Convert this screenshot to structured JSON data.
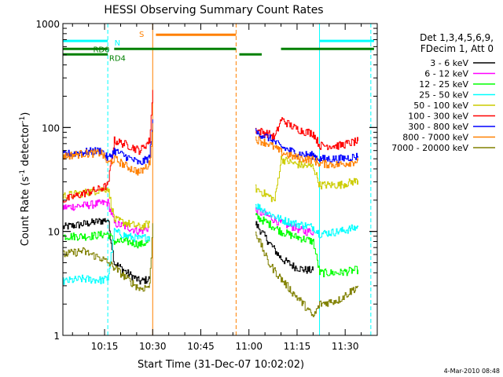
{
  "chart_data": {
    "type": "line",
    "title": "HESSI Observing Summary Count Rates",
    "xlabel": "Start Time (31-Dec-07 10:02:02)",
    "ylabel_main": "Count Rate (s",
    "ylabel_sup1": "-1",
    "ylabel_mid": " detector",
    "ylabel_sup2": "-1",
    "ylabel_end": ")",
    "y_scale": "log",
    "xlim": [
      "10:02",
      "11:40"
    ],
    "ylim": [
      1,
      1000
    ],
    "x_ticks": [
      "10:15",
      "10:30",
      "10:45",
      "11:00",
      "11:15",
      "11:30"
    ],
    "y_ticks": [
      {
        "value": 1,
        "label": "1"
      },
      {
        "value": 10,
        "label": "10"
      },
      {
        "value": 100,
        "label": "100"
      },
      {
        "value": 1000,
        "label": "1000"
      }
    ],
    "legend_title": "Det 1,3,4,5,6,9,",
    "legend_subtitle": "FDecim 1, Att 0",
    "legend_position": "right",
    "footer": "4-Mar-2010 08:48",
    "series": [
      {
        "name": "3 - 6 keV",
        "color": "#000000",
        "points": [
          [
            "10:02",
            11
          ],
          [
            "10:10",
            12
          ],
          [
            "10:16",
            13
          ],
          [
            "10:18",
            5
          ],
          [
            "10:22",
            4
          ],
          [
            "10:26",
            3.3
          ],
          [
            "10:29",
            3.5
          ],
          [
            "11:02",
            12
          ],
          [
            "11:06",
            8
          ],
          [
            "11:10",
            5.5
          ],
          [
            "11:14",
            4.6
          ],
          [
            "11:17",
            4.3
          ],
          [
            "11:20",
            4.2
          ]
        ]
      },
      {
        "name": "6 - 12 keV",
        "color": "#ff00ff",
        "points": [
          [
            "10:02",
            17
          ],
          [
            "10:10",
            18
          ],
          [
            "10:16",
            19
          ],
          [
            "10:18",
            12
          ],
          [
            "10:22",
            11
          ],
          [
            "10:26",
            10
          ],
          [
            "10:29",
            11
          ],
          [
            "11:02",
            16
          ],
          [
            "11:06",
            14
          ],
          [
            "11:10",
            12
          ],
          [
            "11:14",
            11
          ],
          [
            "11:17",
            10
          ],
          [
            "11:20",
            10
          ]
        ]
      },
      {
        "name": "12 - 25 keV",
        "color": "#00ff00",
        "points": [
          [
            "10:02",
            9
          ],
          [
            "10:10",
            9
          ],
          [
            "10:16",
            9.5
          ],
          [
            "10:18",
            8
          ],
          [
            "10:22",
            8
          ],
          [
            "10:26",
            7.5
          ],
          [
            "10:29",
            8
          ],
          [
            "11:02",
            14
          ],
          [
            "11:06",
            12
          ],
          [
            "11:10",
            10
          ],
          [
            "11:14",
            9
          ],
          [
            "11:17",
            8.5
          ],
          [
            "11:20",
            8
          ],
          [
            "11:22",
            4
          ],
          [
            "11:28",
            4
          ],
          [
            "11:34",
            4.3
          ]
        ]
      },
      {
        "name": "25 - 50 keV",
        "color": "#00ffff",
        "points": [
          [
            "10:02",
            3.3
          ],
          [
            "10:08",
            3.5
          ],
          [
            "10:14",
            3.4
          ],
          [
            "10:16",
            3.5
          ],
          [
            "10:18",
            10
          ],
          [
            "10:22",
            9
          ],
          [
            "10:26",
            8.5
          ],
          [
            "10:29",
            9
          ],
          [
            "11:02",
            18
          ],
          [
            "11:06",
            15
          ],
          [
            "11:10",
            13
          ],
          [
            "11:14",
            12
          ],
          [
            "11:17",
            11.5
          ],
          [
            "11:20",
            11
          ],
          [
            "11:22",
            9.5
          ],
          [
            "11:28",
            10
          ],
          [
            "11:34",
            11
          ]
        ]
      },
      {
        "name": "50 - 100 keV",
        "color": "#cccc00",
        "points": [
          [
            "10:02",
            22
          ],
          [
            "10:10",
            24
          ],
          [
            "10:16",
            26
          ],
          [
            "10:18",
            13
          ],
          [
            "10:22",
            12
          ],
          [
            "10:26",
            11
          ],
          [
            "10:29",
            12
          ],
          [
            "11:02",
            26
          ],
          [
            "11:06",
            22
          ],
          [
            "11:08",
            20
          ],
          [
            "11:10",
            50
          ],
          [
            "11:14",
            45
          ],
          [
            "11:17",
            43
          ],
          [
            "11:20",
            42
          ],
          [
            "11:22",
            28
          ],
          [
            "11:28",
            28
          ],
          [
            "11:34",
            31
          ]
        ]
      },
      {
        "name": "100 - 300 keV",
        "color": "#ff0000",
        "points": [
          [
            "10:02",
            20
          ],
          [
            "10:08",
            23
          ],
          [
            "10:14",
            26
          ],
          [
            "10:16",
            28
          ],
          [
            "10:18",
            75
          ],
          [
            "10:22",
            68
          ],
          [
            "10:26",
            60
          ],
          [
            "10:29",
            75
          ],
          [
            "10:30",
            230
          ],
          [
            "11:02",
            95
          ],
          [
            "11:06",
            87
          ],
          [
            "11:08",
            80
          ],
          [
            "11:10",
            120
          ],
          [
            "11:14",
            100
          ],
          [
            "11:17",
            92
          ],
          [
            "11:20",
            88
          ],
          [
            "11:22",
            67
          ],
          [
            "11:28",
            67
          ],
          [
            "11:34",
            74
          ]
        ]
      },
      {
        "name": "300 - 800 keV",
        "color": "#0000ff",
        "points": [
          [
            "10:02",
            55
          ],
          [
            "10:08",
            58
          ],
          [
            "10:14",
            60
          ],
          [
            "10:16",
            50
          ],
          [
            "10:18",
            60
          ],
          [
            "10:22",
            52
          ],
          [
            "10:26",
            45
          ],
          [
            "10:29",
            52
          ],
          [
            "10:30",
            120
          ],
          [
            "11:02",
            90
          ],
          [
            "11:06",
            80
          ],
          [
            "11:10",
            65
          ],
          [
            "11:14",
            58
          ],
          [
            "11:17",
            55
          ],
          [
            "11:20",
            54
          ],
          [
            "11:22",
            50
          ],
          [
            "11:28",
            50
          ],
          [
            "11:34",
            53
          ]
        ]
      },
      {
        "name": "800 - 7000 keV",
        "color": "#ff8000",
        "points": [
          [
            "10:02",
            53
          ],
          [
            "10:08",
            56
          ],
          [
            "10:14",
            57
          ],
          [
            "10:16",
            45
          ],
          [
            "10:18",
            50
          ],
          [
            "10:22",
            42
          ],
          [
            "10:26",
            37
          ],
          [
            "10:29",
            45
          ],
          [
            "10:30",
            110
          ],
          [
            "11:02",
            78
          ],
          [
            "11:06",
            70
          ],
          [
            "11:10",
            58
          ],
          [
            "11:14",
            52
          ],
          [
            "11:17",
            50
          ],
          [
            "11:20",
            49
          ],
          [
            "11:22",
            45
          ],
          [
            "11:28",
            44
          ],
          [
            "11:34",
            48
          ]
        ]
      },
      {
        "name": "7000 - 20000 keV",
        "color": "#808000",
        "points": [
          [
            "10:02",
            6
          ],
          [
            "10:08",
            6.5
          ],
          [
            "10:14",
            5.5
          ],
          [
            "10:16",
            5
          ],
          [
            "10:18",
            4.5
          ],
          [
            "10:22",
            3.5
          ],
          [
            "10:26",
            2.8
          ],
          [
            "10:29",
            3
          ],
          [
            "10:30",
            12
          ],
          [
            "11:02",
            10
          ],
          [
            "11:06",
            5
          ],
          [
            "11:10",
            3.5
          ],
          [
            "11:14",
            2.5
          ],
          [
            "11:17",
            2
          ],
          [
            "11:20",
            1.5
          ],
          [
            "11:22",
            2
          ],
          [
            "11:28",
            2.2
          ],
          [
            "11:34",
            3
          ]
        ]
      }
    ],
    "state_bars": [
      {
        "label": "N",
        "color": "#00ffff",
        "value": 680,
        "segments": [
          [
            "10:02",
            "10:16"
          ],
          [
            "11:22",
            "11:39"
          ]
        ]
      },
      {
        "label": "S",
        "color": "#ff8000",
        "value": 780,
        "segments": [
          [
            "10:31",
            "10:56"
          ]
        ]
      },
      {
        "label": "RD0",
        "color": "#008000",
        "value": 570,
        "segments": [
          [
            "10:02",
            "10:16"
          ],
          [
            "10:18",
            "10:56"
          ],
          [
            "11:10",
            "11:39"
          ]
        ]
      },
      {
        "label": "RD4",
        "color": "#008000",
        "value": 505,
        "segments": [
          [
            "10:02",
            "10:16"
          ],
          [
            "10:57",
            "11:04"
          ]
        ]
      }
    ],
    "markers": [
      {
        "time": "10:16",
        "color": "#00ffff",
        "style": "dashed"
      },
      {
        "time": "10:30",
        "color": "#ff8000",
        "style": "solid"
      },
      {
        "time": "10:56",
        "color": "#ff8000",
        "style": "dashed"
      },
      {
        "time": "11:22",
        "color": "#00ffff",
        "style": "solid"
      },
      {
        "time": "11:38",
        "color": "#00ffff",
        "style": "dashed"
      }
    ]
  }
}
